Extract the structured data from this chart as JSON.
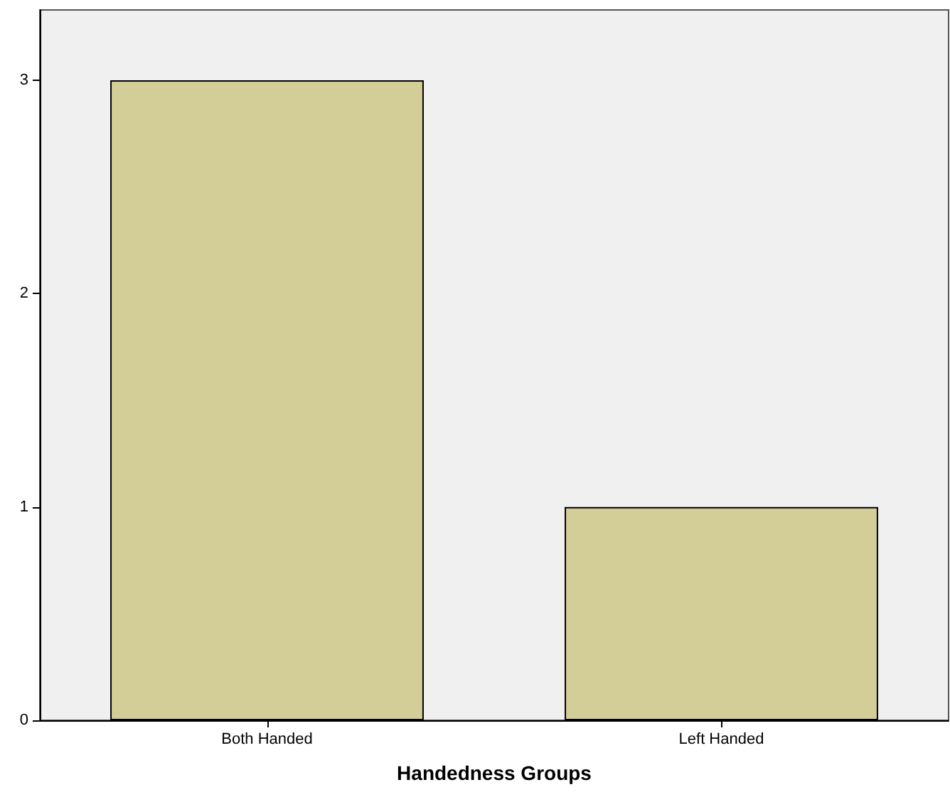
{
  "chart_data": {
    "type": "bar",
    "xlabel": "Handedness Groups",
    "categories": [
      "Both Handed",
      "Left Handed"
    ],
    "values": [
      3,
      1
    ],
    "color": "#d3ce97",
    "ylim": [
      0,
      3.33
    ],
    "yticks": [
      0,
      1,
      2,
      3
    ],
    "grid": false
  }
}
